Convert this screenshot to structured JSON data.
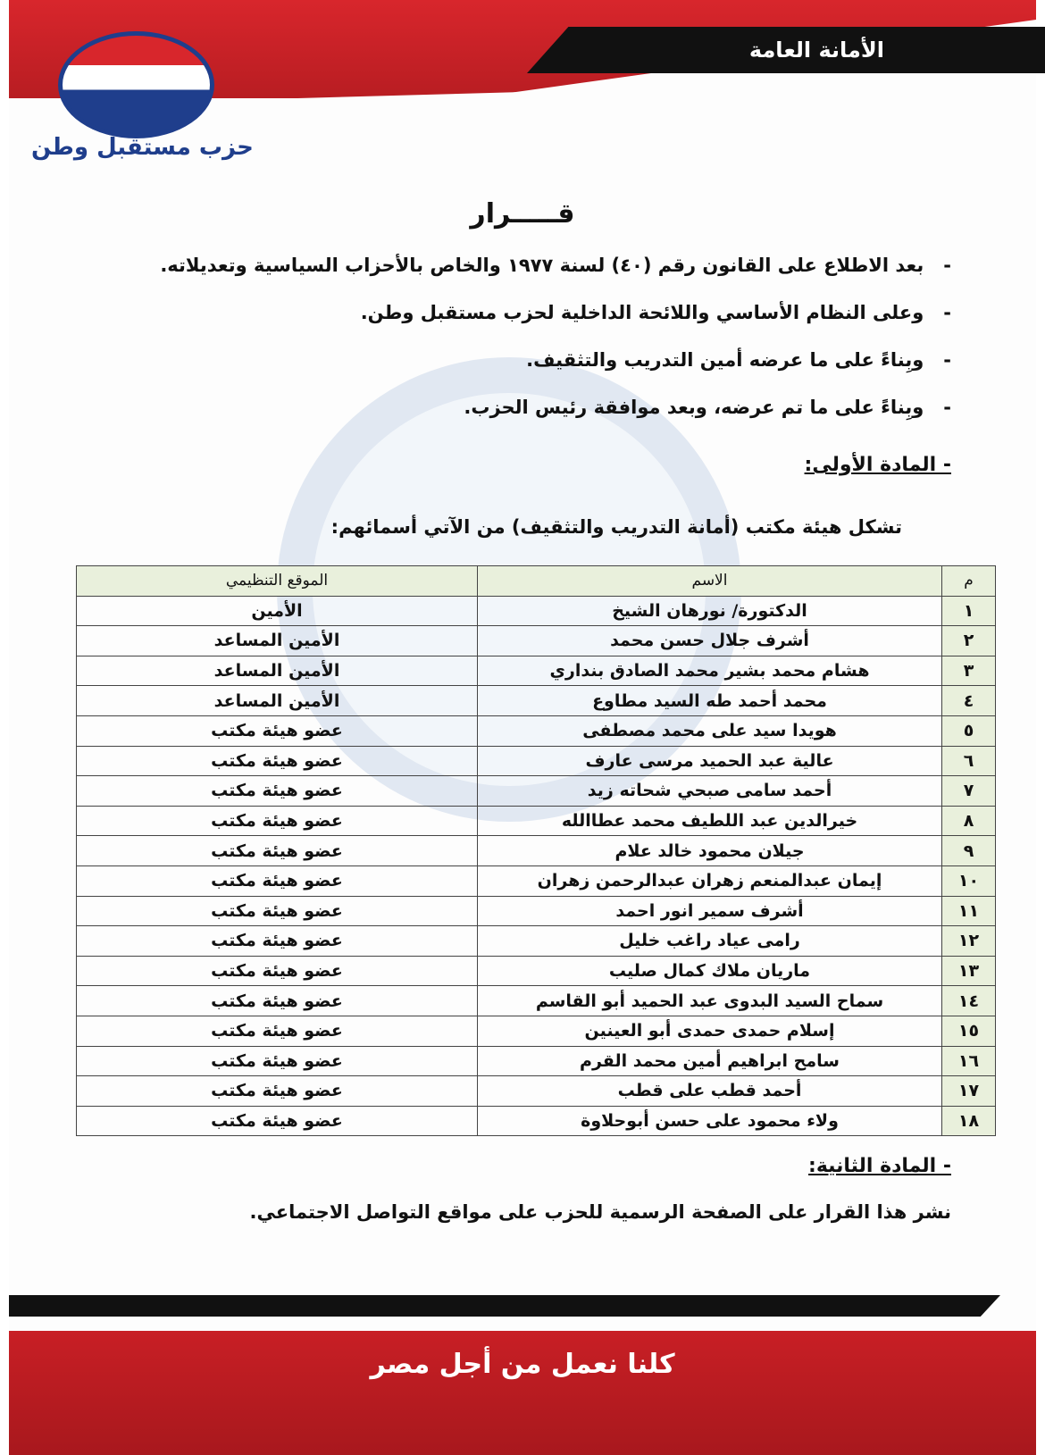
{
  "header": {
    "title": "الأمانة العامة",
    "party_name": "حزب مستقبل وطن"
  },
  "document": {
    "title": "قـــــرار",
    "clauses": [
      "بعد الاطلاع على القانون رقم (٤٠) لسنة ١٩٧٧ والخاص بالأحزاب السياسية وتعديلاته.",
      "وعلى النظام الأساسي واللائحة الداخلية لحزب مستقبل وطن.",
      "وبِناءً على ما عرضه أمين التدريب والتثقيف.",
      "وبِناءً على ما تم عرضه، وبعد موافقة رئيس الحزب."
    ],
    "article1": {
      "heading": "- المادة الأولى:",
      "intro": "تشكل هيئة مكتب (أمانة التدريب والتثقيف) من الآتي أسمائهم:"
    },
    "table": {
      "headers": [
        "م",
        "الاسم",
        "الموقع التنظيمي"
      ],
      "rows": [
        [
          "١",
          "الدكتورة/ نورهان الشيخ",
          "الأمين"
        ],
        [
          "٢",
          "أشرف جلال حسن محمد",
          "الأمين المساعد"
        ],
        [
          "٣",
          "هشام محمد بشير محمد الصادق بنداري",
          "الأمين المساعد"
        ],
        [
          "٤",
          "محمد أحمد طه السيد مطاوع",
          "الأمين المساعد"
        ],
        [
          "٥",
          "هويدا سيد على محمد مصطفى",
          "عضو هيئة مكتب"
        ],
        [
          "٦",
          "عالية عبد الحميد مرسى عارف",
          "عضو هيئة مكتب"
        ],
        [
          "٧",
          "أحمد سامى صبحي شحاته زيد",
          "عضو هيئة مكتب"
        ],
        [
          "٨",
          "خيرالدين عبد اللطيف محمد عطاالله",
          "عضو هيئة مكتب"
        ],
        [
          "٩",
          "جيلان محمود خالد علام",
          "عضو هيئة مكتب"
        ],
        [
          "١٠",
          "إيمان عبدالمنعم زهران عبدالرحمن زهران",
          "عضو هيئة مكتب"
        ],
        [
          "١١",
          "أشرف سمير انور احمد",
          "عضو هيئة مكتب"
        ],
        [
          "١٢",
          "رامى عياد راغب خليل",
          "عضو هيئة مكتب"
        ],
        [
          "١٣",
          "ماريان ملاك كمال صليب",
          "عضو هيئة مكتب"
        ],
        [
          "١٤",
          "سماح السيد البدوى عبد الحميد أبو القاسم",
          "عضو هيئة مكتب"
        ],
        [
          "١٥",
          "إسلام حمدى حمدى أبو العينين",
          "عضو هيئة مكتب"
        ],
        [
          "١٦",
          "سامح ابراهيم أمين محمد القرم",
          "عضو هيئة مكتب"
        ],
        [
          "١٧",
          "أحمد قطب على قطب",
          "عضو هيئة مكتب"
        ],
        [
          "١٨",
          "ولاء محمود على حسن أبوحلاوة",
          "عضو هيئة مكتب"
        ]
      ]
    },
    "article2": {
      "heading": "- المادة الثانية:",
      "text": "نشر هذا القرار على الصفحة الرسمية للحزب على مواقع التواصل الاجتماعي."
    }
  },
  "footer": {
    "slogan": "كلنا نعمل من أجل مصر"
  },
  "colors": {
    "brand_red": "#c81f25",
    "brand_blue": "#1f3e8c",
    "table_header": "#e9f0dc"
  }
}
